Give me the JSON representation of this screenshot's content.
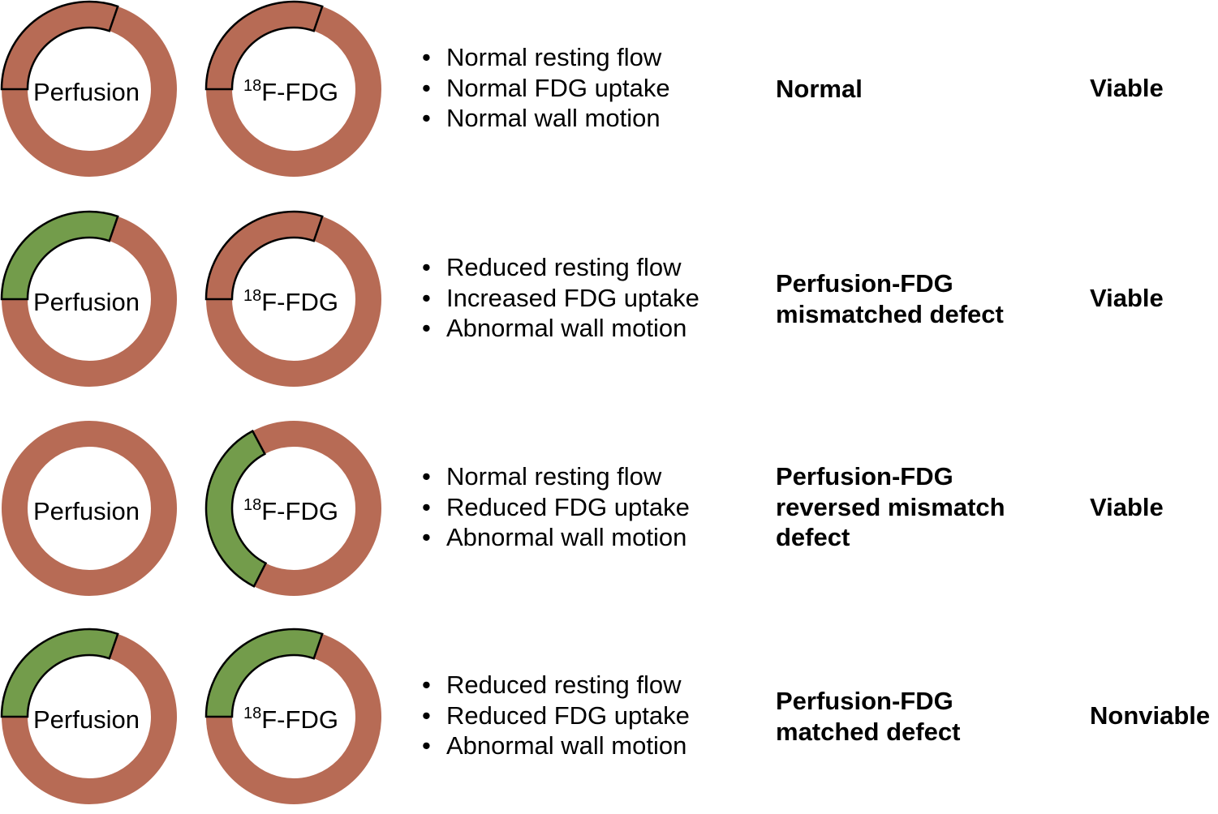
{
  "colors": {
    "normal": "#b76b55",
    "defect": "#739c4b",
    "outline": "#000000"
  },
  "rows": [
    {
      "perfusion": {
        "label": "Perfusion",
        "defect": "none"
      },
      "fdg": {
        "sup": "18",
        "label": "F-FDG",
        "defect": "none"
      },
      "bullets": [
        "Normal resting flow",
        "Normal FDG uptake",
        "Normal wall motion"
      ],
      "result": [
        "Normal"
      ],
      "verdict": "Viable"
    },
    {
      "perfusion": {
        "label": "Perfusion",
        "defect": "top-left"
      },
      "fdg": {
        "sup": "18",
        "label": "F-FDG",
        "defect": "none"
      },
      "bullets": [
        "Reduced resting flow",
        "Increased FDG uptake",
        "Abnormal wall motion"
      ],
      "result": [
        "Perfusion-FDG",
        "mismatched defect"
      ],
      "verdict": "Viable"
    },
    {
      "perfusion": {
        "label": "Perfusion",
        "defect": "none"
      },
      "fdg": {
        "sup": "18",
        "label": "F-FDG",
        "defect": "left"
      },
      "bullets": [
        "Normal resting flow",
        "Reduced FDG uptake",
        "Abnormal wall motion"
      ],
      "result": [
        "Perfusion-FDG",
        "reversed mismatch",
        "defect"
      ],
      "verdict": "Viable"
    },
    {
      "perfusion": {
        "label": "Perfusion",
        "defect": "top-left"
      },
      "fdg": {
        "sup": "18",
        "label": "F-FDG",
        "defect": "top-left"
      },
      "bullets": [
        "Reduced resting flow",
        "Reduced FDG uptake",
        "Abnormal wall motion"
      ],
      "result": [
        "Perfusion-FDG",
        "matched defect"
      ],
      "verdict": "Nonviable"
    }
  ]
}
